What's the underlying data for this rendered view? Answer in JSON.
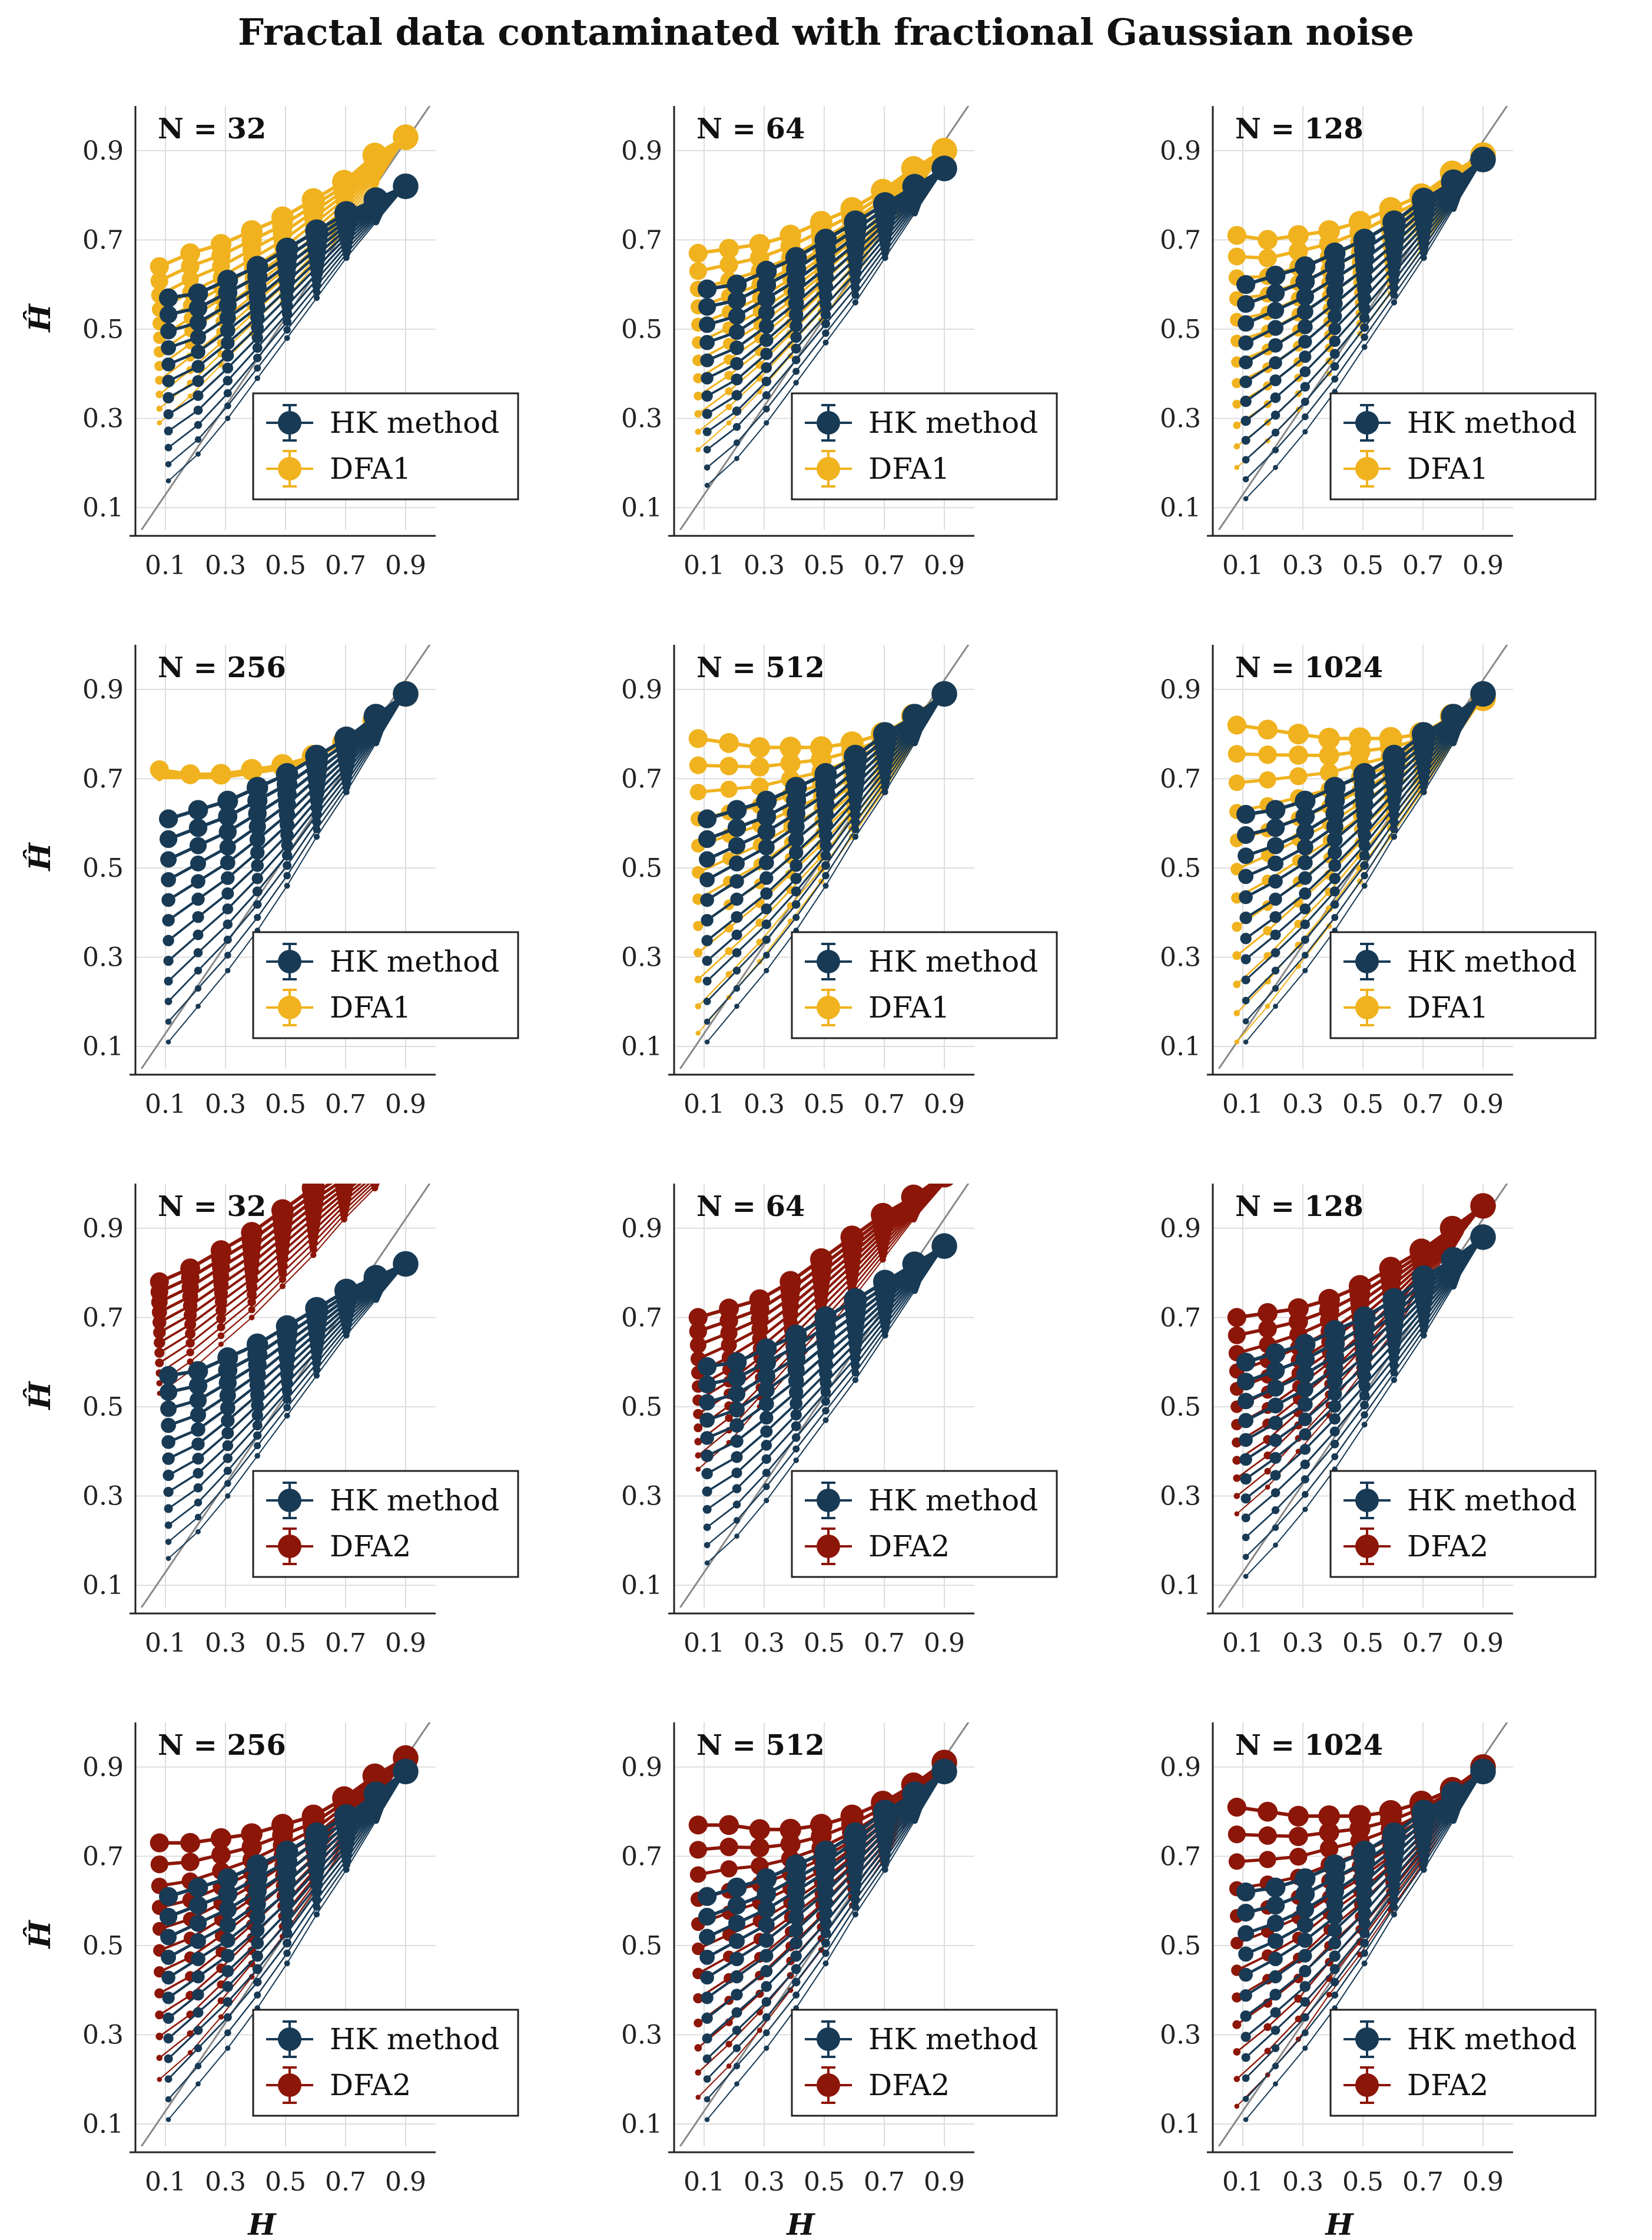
{
  "title": "Fractal data contaminated with fractional Gaussian noise",
  "colors": {
    "hk": "#183a55",
    "dfa1": "#f0b21e",
    "dfa2": "#8c1608",
    "grid": "#dddddd",
    "diag": "#888888"
  },
  "legend_hk": "HK method",
  "axis_labels": {
    "x": "H",
    "y": "Ĥ"
  },
  "chart_data": [
    {
      "type": "line",
      "panel": "N = 32",
      "method": "DFA1",
      "N": 32,
      "x": [
        0.1,
        0.2,
        0.3,
        0.4,
        0.5,
        0.6,
        0.7,
        0.8,
        0.9
      ],
      "hk_top": [
        0.57,
        0.58,
        0.61,
        0.64,
        0.68,
        0.72,
        0.76,
        0.79,
        0.82
      ],
      "hk_bottom": [
        0.16,
        0.22,
        0.3,
        0.39,
        0.48,
        0.57,
        0.66,
        0.74,
        0.82
      ],
      "dfa_top": [
        0.64,
        0.67,
        0.69,
        0.72,
        0.75,
        0.79,
        0.83,
        0.89,
        0.93
      ],
      "dfa_bottom": [
        0.29,
        0.35,
        0.42,
        0.49,
        0.56,
        0.64,
        0.72,
        0.82,
        0.93
      ],
      "xlim": [
        0.0,
        1.0
      ],
      "ylim": [
        0.05,
        1.0
      ],
      "xticks": [
        0.1,
        0.3,
        0.5,
        0.7,
        0.9
      ],
      "yticks": [
        0.1,
        0.3,
        0.5,
        0.7,
        0.9
      ],
      "xlabel": "",
      "ylabel": "Ĥ",
      "legend": [
        "HK method",
        "DFA1"
      ]
    },
    {
      "type": "line",
      "panel": "N = 64",
      "method": "DFA1",
      "N": 64,
      "x": [
        0.1,
        0.2,
        0.3,
        0.4,
        0.5,
        0.6,
        0.7,
        0.8,
        0.9
      ],
      "hk_top": [
        0.59,
        0.6,
        0.63,
        0.66,
        0.7,
        0.74,
        0.78,
        0.82,
        0.86
      ],
      "hk_bottom": [
        0.15,
        0.21,
        0.29,
        0.38,
        0.47,
        0.56,
        0.66,
        0.76,
        0.86
      ],
      "dfa_top": [
        0.67,
        0.68,
        0.69,
        0.71,
        0.74,
        0.77,
        0.81,
        0.86,
        0.9
      ],
      "dfa_bottom": [
        0.23,
        0.29,
        0.36,
        0.44,
        0.52,
        0.61,
        0.7,
        0.8,
        0.9
      ],
      "xlim": [
        0.0,
        1.0
      ],
      "ylim": [
        0.05,
        1.0
      ],
      "xticks": [
        0.1,
        0.3,
        0.5,
        0.7,
        0.9
      ],
      "yticks": [
        0.1,
        0.3,
        0.5,
        0.7,
        0.9
      ],
      "xlabel": "",
      "ylabel": "",
      "legend": [
        "HK method",
        "DFA1"
      ]
    },
    {
      "type": "line",
      "panel": "N = 128",
      "method": "DFA1",
      "N": 128,
      "x": [
        0.1,
        0.2,
        0.3,
        0.4,
        0.5,
        0.6,
        0.7,
        0.8,
        0.9
      ],
      "hk_top": [
        0.6,
        0.62,
        0.64,
        0.67,
        0.7,
        0.74,
        0.79,
        0.83,
        0.88
      ],
      "hk_bottom": [
        0.12,
        0.19,
        0.27,
        0.36,
        0.46,
        0.56,
        0.66,
        0.77,
        0.88
      ],
      "dfa_top": [
        0.71,
        0.7,
        0.71,
        0.72,
        0.74,
        0.77,
        0.8,
        0.85,
        0.89
      ],
      "dfa_bottom": [
        0.19,
        0.25,
        0.32,
        0.4,
        0.49,
        0.58,
        0.68,
        0.78,
        0.89
      ],
      "xlim": [
        0.0,
        1.0
      ],
      "ylim": [
        0.05,
        1.0
      ],
      "xticks": [
        0.1,
        0.3,
        0.5,
        0.7,
        0.9
      ],
      "yticks": [
        0.1,
        0.3,
        0.5,
        0.7,
        0.9
      ],
      "xlabel": "",
      "ylabel": "",
      "legend": [
        "HK method",
        "DFA1"
      ]
    },
    {
      "type": "line",
      "panel": "N = 256",
      "method": "DFA1",
      "N": 256,
      "x": [
        0.1,
        0.2,
        0.3,
        0.4,
        0.5,
        0.6,
        0.7,
        0.8,
        0.9
      ],
      "hk_top": [
        0.61,
        0.63,
        0.65,
        0.68,
        0.71,
        0.75,
        0.79,
        0.84,
        0.89
      ],
      "hk_bottom": [
        0.11,
        0.19,
        0.27,
        0.36,
        0.46,
        0.57,
        0.67,
        0.78,
        0.89
      ],
      "dfa_top": [
        0.72,
        0.71,
        0.71,
        0.72,
        0.73,
        0.75,
        0.78,
        0.83,
        0.89
      ],
      "dfa_bottom": [
        0.7,
        0.7,
        0.7,
        0.71,
        0.72,
        0.74,
        0.78,
        0.83,
        0.89
      ],
      "xlim": [
        0.0,
        1.0
      ],
      "ylim": [
        0.05,
        1.0
      ],
      "xticks": [
        0.1,
        0.3,
        0.5,
        0.7,
        0.9
      ],
      "yticks": [
        0.1,
        0.3,
        0.5,
        0.7,
        0.9
      ],
      "xlabel": "",
      "ylabel": "Ĥ",
      "legend": [
        "HK method",
        "DFA1"
      ]
    },
    {
      "type": "line",
      "panel": "N = 512",
      "method": "DFA1",
      "N": 512,
      "x": [
        0.1,
        0.2,
        0.3,
        0.4,
        0.5,
        0.6,
        0.7,
        0.8,
        0.9
      ],
      "hk_top": [
        0.61,
        0.63,
        0.65,
        0.68,
        0.71,
        0.75,
        0.8,
        0.84,
        0.89
      ],
      "hk_bottom": [
        0.11,
        0.19,
        0.27,
        0.36,
        0.46,
        0.57,
        0.67,
        0.78,
        0.89
      ],
      "dfa_top": [
        0.79,
        0.78,
        0.77,
        0.77,
        0.77,
        0.78,
        0.8,
        0.84,
        0.89
      ],
      "dfa_bottom": [
        0.13,
        0.21,
        0.29,
        0.38,
        0.47,
        0.57,
        0.67,
        0.78,
        0.89
      ],
      "xlim": [
        0.0,
        1.0
      ],
      "ylim": [
        0.05,
        1.0
      ],
      "xticks": [
        0.1,
        0.3,
        0.5,
        0.7,
        0.9
      ],
      "yticks": [
        0.1,
        0.3,
        0.5,
        0.7,
        0.9
      ],
      "xlabel": "",
      "ylabel": "",
      "legend": [
        "HK method",
        "DFA1"
      ]
    },
    {
      "type": "line",
      "panel": "N = 1024",
      "method": "DFA1",
      "N": 1024,
      "x": [
        0.1,
        0.2,
        0.3,
        0.4,
        0.5,
        0.6,
        0.7,
        0.8,
        0.9
      ],
      "hk_top": [
        0.62,
        0.63,
        0.65,
        0.68,
        0.71,
        0.75,
        0.8,
        0.84,
        0.89
      ],
      "hk_bottom": [
        0.11,
        0.19,
        0.27,
        0.36,
        0.46,
        0.57,
        0.67,
        0.78,
        0.89
      ],
      "dfa_top": [
        0.82,
        0.81,
        0.8,
        0.79,
        0.79,
        0.79,
        0.8,
        0.84,
        0.88
      ],
      "dfa_bottom": [
        0.11,
        0.19,
        0.28,
        0.37,
        0.47,
        0.57,
        0.67,
        0.78,
        0.88
      ],
      "xlim": [
        0.0,
        1.0
      ],
      "ylim": [
        0.05,
        1.0
      ],
      "xticks": [
        0.1,
        0.3,
        0.5,
        0.7,
        0.9
      ],
      "yticks": [
        0.1,
        0.3,
        0.5,
        0.7,
        0.9
      ],
      "xlabel": "",
      "ylabel": "",
      "legend": [
        "HK method",
        "DFA1"
      ]
    },
    {
      "type": "line",
      "panel": "N = 32",
      "method": "DFA2",
      "N": 32,
      "x": [
        0.1,
        0.2,
        0.3,
        0.4,
        0.5,
        0.6,
        0.7,
        0.8,
        0.9
      ],
      "hk_top": [
        0.57,
        0.58,
        0.61,
        0.64,
        0.68,
        0.72,
        0.76,
        0.79,
        0.82
      ],
      "hk_bottom": [
        0.16,
        0.22,
        0.3,
        0.39,
        0.48,
        0.57,
        0.66,
        0.74,
        0.82
      ],
      "dfa_top": [
        0.78,
        0.81,
        0.85,
        0.89,
        0.94,
        0.99,
        1.03,
        1.07,
        1.1
      ],
      "dfa_bottom": [
        0.53,
        0.58,
        0.64,
        0.7,
        0.77,
        0.84,
        0.92,
        0.99,
        1.06
      ],
      "xlim": [
        0.0,
        1.0
      ],
      "ylim": [
        0.05,
        1.0
      ],
      "xticks": [
        0.1,
        0.3,
        0.5,
        0.7,
        0.9
      ],
      "yticks": [
        0.1,
        0.3,
        0.5,
        0.7,
        0.9
      ],
      "xlabel": "",
      "ylabel": "Ĥ",
      "legend": [
        "HK method",
        "DFA2"
      ]
    },
    {
      "type": "line",
      "panel": "N = 64",
      "method": "DFA2",
      "N": 64,
      "x": [
        0.1,
        0.2,
        0.3,
        0.4,
        0.5,
        0.6,
        0.7,
        0.8,
        0.9
      ],
      "hk_top": [
        0.59,
        0.6,
        0.63,
        0.66,
        0.7,
        0.74,
        0.78,
        0.82,
        0.86
      ],
      "hk_bottom": [
        0.15,
        0.21,
        0.29,
        0.38,
        0.47,
        0.56,
        0.66,
        0.76,
        0.86
      ],
      "dfa_top": [
        0.7,
        0.72,
        0.74,
        0.78,
        0.83,
        0.88,
        0.93,
        0.97,
        1.02
      ],
      "dfa_bottom": [
        0.36,
        0.42,
        0.5,
        0.58,
        0.66,
        0.74,
        0.83,
        0.92,
        1.0
      ],
      "xlim": [
        0.0,
        1.0
      ],
      "ylim": [
        0.05,
        1.0
      ],
      "xticks": [
        0.1,
        0.3,
        0.5,
        0.7,
        0.9
      ],
      "yticks": [
        0.1,
        0.3,
        0.5,
        0.7,
        0.9
      ],
      "xlabel": "",
      "ylabel": "",
      "legend": [
        "HK method",
        "DFA2"
      ]
    },
    {
      "type": "line",
      "panel": "N = 128",
      "method": "DFA2",
      "N": 128,
      "x": [
        0.1,
        0.2,
        0.3,
        0.4,
        0.5,
        0.6,
        0.7,
        0.8,
        0.9
      ],
      "hk_top": [
        0.6,
        0.62,
        0.64,
        0.67,
        0.7,
        0.74,
        0.79,
        0.83,
        0.88
      ],
      "hk_bottom": [
        0.12,
        0.19,
        0.27,
        0.36,
        0.46,
        0.56,
        0.66,
        0.77,
        0.88
      ],
      "dfa_top": [
        0.7,
        0.71,
        0.72,
        0.74,
        0.77,
        0.81,
        0.85,
        0.9,
        0.95
      ],
      "dfa_bottom": [
        0.26,
        0.32,
        0.4,
        0.48,
        0.57,
        0.66,
        0.76,
        0.86,
        0.95
      ],
      "xlim": [
        0.0,
        1.0
      ],
      "ylim": [
        0.05,
        1.0
      ],
      "xticks": [
        0.1,
        0.3,
        0.5,
        0.7,
        0.9
      ],
      "yticks": [
        0.1,
        0.3,
        0.5,
        0.7,
        0.9
      ],
      "xlabel": "",
      "ylabel": "",
      "legend": [
        "HK method",
        "DFA2"
      ]
    },
    {
      "type": "line",
      "panel": "N = 256",
      "method": "DFA2",
      "N": 256,
      "x": [
        0.1,
        0.2,
        0.3,
        0.4,
        0.5,
        0.6,
        0.7,
        0.8,
        0.9
      ],
      "hk_top": [
        0.61,
        0.63,
        0.65,
        0.68,
        0.71,
        0.75,
        0.79,
        0.84,
        0.89
      ],
      "hk_bottom": [
        0.11,
        0.19,
        0.27,
        0.36,
        0.46,
        0.57,
        0.67,
        0.78,
        0.89
      ],
      "dfa_top": [
        0.73,
        0.73,
        0.74,
        0.75,
        0.77,
        0.79,
        0.83,
        0.88,
        0.92
      ],
      "dfa_bottom": [
        0.2,
        0.26,
        0.34,
        0.43,
        0.52,
        0.62,
        0.72,
        0.82,
        0.92
      ],
      "xlim": [
        0.0,
        1.0
      ],
      "ylim": [
        0.05,
        1.0
      ],
      "xticks": [
        0.1,
        0.3,
        0.5,
        0.7,
        0.9
      ],
      "yticks": [
        0.1,
        0.3,
        0.5,
        0.7,
        0.9
      ],
      "xlabel": "H",
      "ylabel": "Ĥ",
      "legend": [
        "HK method",
        "DFA2"
      ]
    },
    {
      "type": "line",
      "panel": "N = 512",
      "method": "DFA2",
      "N": 512,
      "x": [
        0.1,
        0.2,
        0.3,
        0.4,
        0.5,
        0.6,
        0.7,
        0.8,
        0.9
      ],
      "hk_top": [
        0.61,
        0.63,
        0.65,
        0.68,
        0.71,
        0.75,
        0.8,
        0.84,
        0.89
      ],
      "hk_bottom": [
        0.11,
        0.19,
        0.27,
        0.36,
        0.46,
        0.57,
        0.67,
        0.78,
        0.89
      ],
      "dfa_top": [
        0.77,
        0.77,
        0.76,
        0.76,
        0.77,
        0.79,
        0.82,
        0.86,
        0.91
      ],
      "dfa_bottom": [
        0.16,
        0.23,
        0.31,
        0.4,
        0.49,
        0.59,
        0.69,
        0.8,
        0.91
      ],
      "xlim": [
        0.0,
        1.0
      ],
      "ylim": [
        0.05,
        1.0
      ],
      "xticks": [
        0.1,
        0.3,
        0.5,
        0.7,
        0.9
      ],
      "yticks": [
        0.1,
        0.3,
        0.5,
        0.7,
        0.9
      ],
      "xlabel": "H",
      "ylabel": "",
      "legend": [
        "HK method",
        "DFA2"
      ]
    },
    {
      "type": "line",
      "panel": "N = 1024",
      "method": "DFA2",
      "N": 1024,
      "x": [
        0.1,
        0.2,
        0.3,
        0.4,
        0.5,
        0.6,
        0.7,
        0.8,
        0.9
      ],
      "hk_top": [
        0.62,
        0.63,
        0.65,
        0.68,
        0.71,
        0.75,
        0.8,
        0.84,
        0.89
      ],
      "hk_bottom": [
        0.11,
        0.19,
        0.27,
        0.36,
        0.46,
        0.57,
        0.67,
        0.78,
        0.89
      ],
      "dfa_top": [
        0.81,
        0.8,
        0.79,
        0.79,
        0.79,
        0.8,
        0.82,
        0.85,
        0.9
      ],
      "dfa_bottom": [
        0.14,
        0.21,
        0.29,
        0.39,
        0.48,
        0.58,
        0.68,
        0.79,
        0.9
      ],
      "xlim": [
        0.0,
        1.0
      ],
      "ylim": [
        0.05,
        1.0
      ],
      "xticks": [
        0.1,
        0.3,
        0.5,
        0.7,
        0.9
      ],
      "yticks": [
        0.1,
        0.3,
        0.5,
        0.7,
        0.9
      ],
      "xlabel": "H",
      "ylabel": "",
      "legend": [
        "HK method",
        "DFA2"
      ]
    }
  ]
}
